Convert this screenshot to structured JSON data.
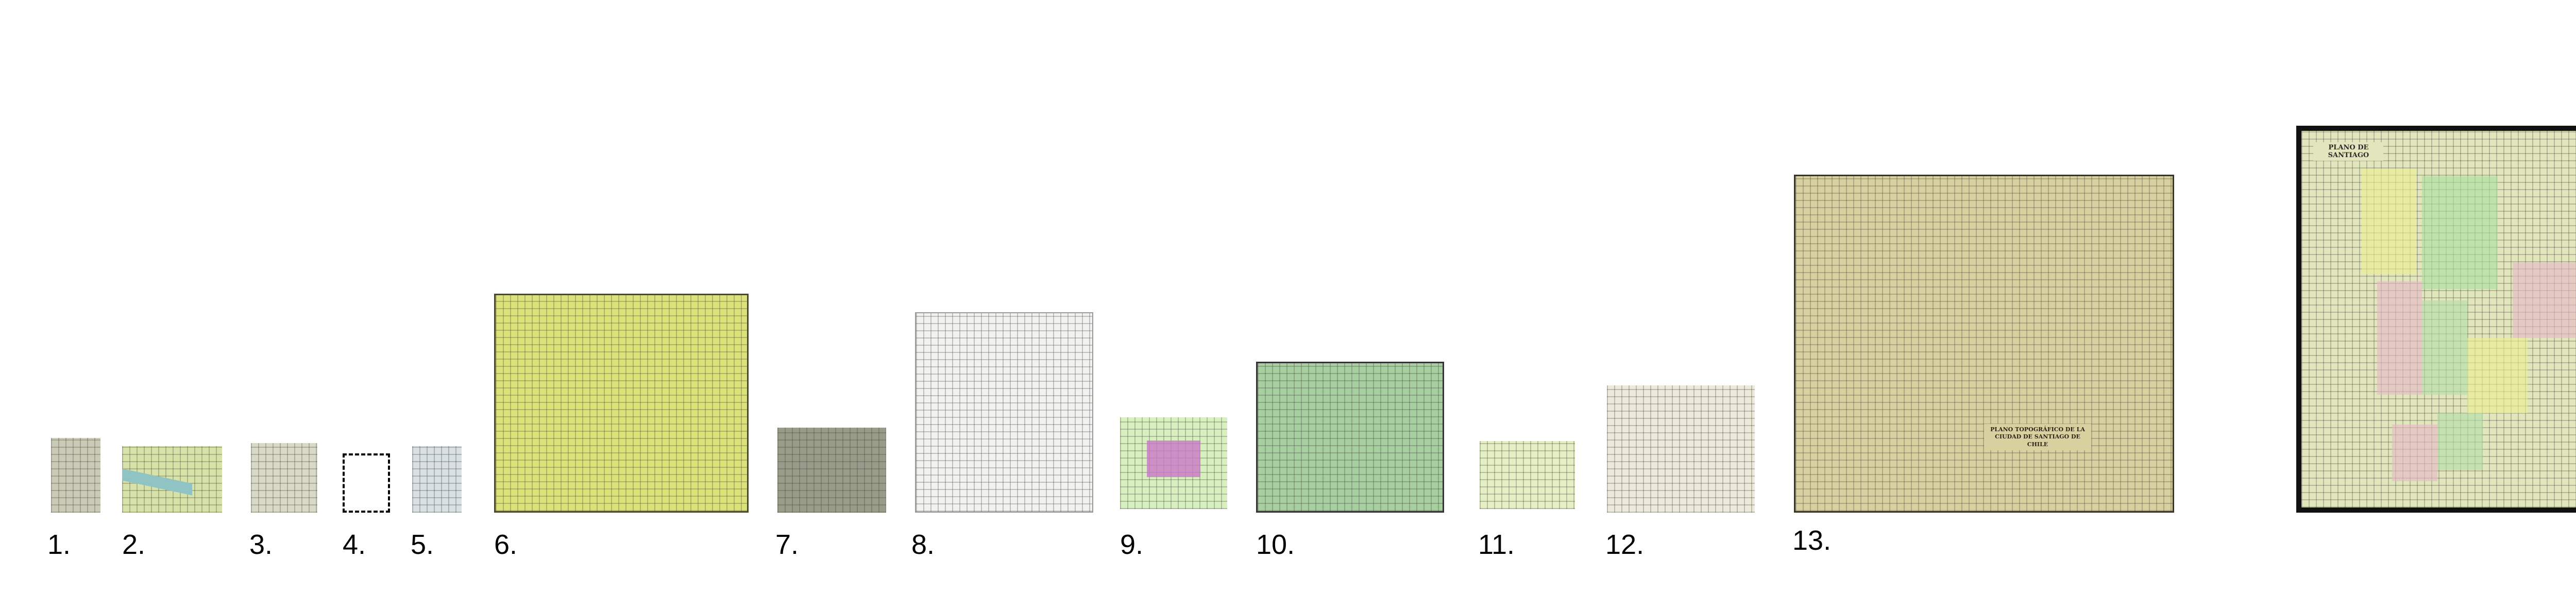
{
  "figure": {
    "labels": [
      "1.",
      "2.",
      "3.",
      "4.",
      "5.",
      "6.",
      "7.",
      "8.",
      "9.",
      "10.",
      "11.",
      "12.",
      "13."
    ],
    "maps": [
      {
        "number": "1.",
        "tone": "#c9cbb6"
      },
      {
        "number": "2.",
        "tone": "#d6e2a8"
      },
      {
        "number": "3.",
        "tone": "#d9d9c8"
      },
      {
        "number": "4.",
        "tone": "missing (dashed outline)"
      },
      {
        "number": "5.",
        "tone": "#d8e0e4"
      },
      {
        "number": "6.",
        "tone": "#dbe27a"
      },
      {
        "number": "7.",
        "tone": "#9a9c8a"
      },
      {
        "number": "8.",
        "tone": "#f2f2f0"
      },
      {
        "number": "9.",
        "tone": "#d8efc0"
      },
      {
        "number": "10.",
        "tone": "#a7cfa0"
      },
      {
        "number": "11.",
        "tone": "#e4efc4"
      },
      {
        "number": "12.",
        "tone": "#eeeadb"
      },
      {
        "number": "13.",
        "tone": "#d9d0a0"
      },
      {
        "number": "",
        "tone": "#e2e6bc"
      }
    ],
    "map14_title": "PLANO DE SANTIAGO",
    "map13_title": "PLANO TOPOGRÁFICO DE LA CIUDAD DE SANTIAGO DE CHILE"
  }
}
